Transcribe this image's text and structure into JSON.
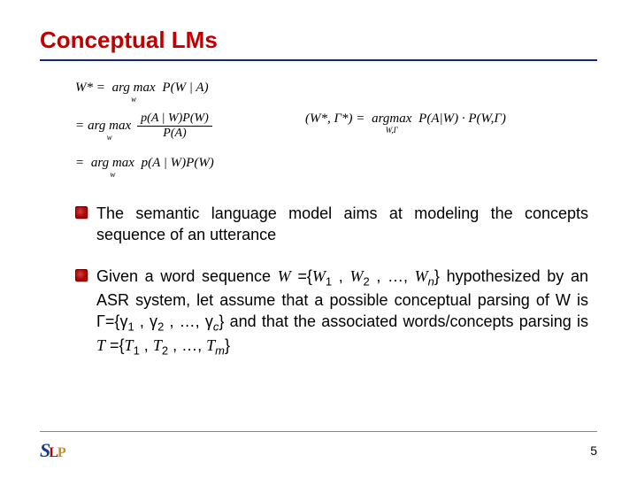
{
  "title": "Conceptual LMs",
  "colors": {
    "title_color": "#c00000",
    "underline_color": "#1a237e",
    "bullet_fill": "#b00000",
    "bullet_border": "#700000",
    "footer_line": "#8a8a6a",
    "text": "#000000",
    "background": "#ffffff"
  },
  "typography": {
    "title_fontsize": 26,
    "body_fontsize": 18,
    "eq_fontsize": 15,
    "title_font": "Comic Sans MS",
    "body_font": "Arial",
    "eq_font": "Times New Roman"
  },
  "equations": {
    "e1_lhs": "W* =",
    "e1_argmax": "arg max",
    "e1_sub": "w",
    "e1_rhs": "P(W | A)",
    "e2_eq": "=",
    "e2_argmax": "arg max",
    "e2_sub": "w",
    "e2_num": "p(A | W)P(W)",
    "e2_den": "P(A)",
    "e3_eq": "=",
    "e3_argmax": "arg max",
    "e3_sub": "w",
    "e3_rhs": "p(A | W)P(W)",
    "e4_lhs": "(W*, Γ*) =",
    "e4_argmax": "argmax",
    "e4_sub": "W,Γ",
    "e4_rhs": "P(A|W) · P(W,Γ)"
  },
  "bullets": [
    {
      "text_parts": [
        {
          "t": "The semantic language model aims at modeling the concepts sequence of an utterance"
        }
      ]
    },
    {
      "text_parts": [
        {
          "t": "Given a word sequence "
        },
        {
          "t": "W",
          "ital": true
        },
        {
          "t": " ={"
        },
        {
          "t": "W",
          "ital": true
        },
        {
          "t": "1",
          "sub": true
        },
        {
          "t": " , "
        },
        {
          "t": "W",
          "ital": true
        },
        {
          "t": "2",
          "sub": true
        },
        {
          "t": " , …, "
        },
        {
          "t": "W",
          "ital": true
        },
        {
          "t": "n",
          "sub": true,
          "ital": true
        },
        {
          "t": "} hypothesized by an ASR system, let assume that a possible conceptual parsing of W is Γ={γ"
        },
        {
          "t": "1",
          "sub": true
        },
        {
          "t": " , γ"
        },
        {
          "t": "2",
          "sub": true
        },
        {
          "t": " , …, γ"
        },
        {
          "t": "c",
          "sub": true,
          "ital": true
        },
        {
          "t": "} and that the associated words/concepts parsing is "
        },
        {
          "t": "T",
          "ital": true
        },
        {
          "t": " ={"
        },
        {
          "t": "T",
          "ital": true
        },
        {
          "t": "1",
          "sub": true
        },
        {
          "t": " , "
        },
        {
          "t": "T",
          "ital": true
        },
        {
          "t": "2",
          "sub": true
        },
        {
          "t": " , …, "
        },
        {
          "t": "T",
          "ital": true
        },
        {
          "t": "m",
          "sub": true,
          "ital": true
        },
        {
          "t": "}"
        }
      ]
    }
  ],
  "footer": {
    "logo_s": "S",
    "logo_l": "L",
    "logo_p": "P",
    "page_number": "5"
  }
}
